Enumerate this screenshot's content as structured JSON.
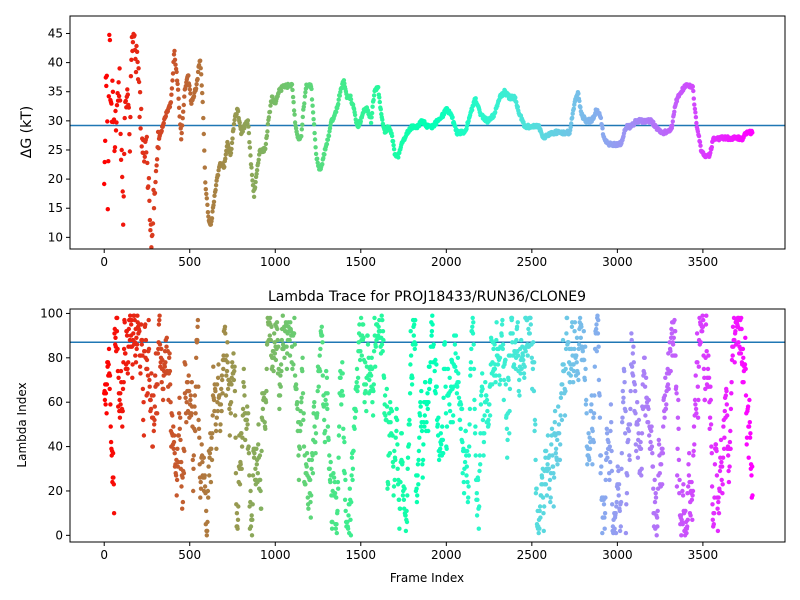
{
  "figure": {
    "background": "#ffffff"
  },
  "chart_data": [
    {
      "type": "scatter",
      "title": "",
      "xlabel": "",
      "ylabel": "ΔG (kT)",
      "xlim": [
        -200,
        3980
      ],
      "ylim": [
        8,
        48
      ],
      "xticks": [
        0,
        500,
        1000,
        1500,
        2000,
        2500,
        3000,
        3500
      ],
      "yticks": [
        10,
        15,
        20,
        25,
        30,
        35,
        40,
        45
      ],
      "hline": 29.2,
      "hline_color": "#1f77b4",
      "colormap": "rainbow_r",
      "frames": 3790,
      "grid": false,
      "legend": "none",
      "trace_anchors": [
        [
          0,
          20
        ],
        [
          8,
          33
        ],
        [
          15,
          40
        ],
        [
          22,
          14
        ],
        [
          30,
          46
        ],
        [
          40,
          30
        ],
        [
          50,
          36
        ],
        [
          60,
          26
        ],
        [
          75,
          35
        ],
        [
          90,
          38
        ],
        [
          110,
          13
        ],
        [
          120,
          31
        ],
        [
          130,
          36
        ],
        [
          150,
          27
        ],
        [
          160,
          43
        ],
        [
          175,
          45
        ],
        [
          190,
          40
        ],
        [
          210,
          33
        ],
        [
          225,
          24
        ],
        [
          240,
          27
        ],
        [
          260,
          20
        ],
        [
          275,
          9
        ],
        [
          290,
          18
        ],
        [
          310,
          25
        ],
        [
          330,
          28
        ],
        [
          360,
          31
        ],
        [
          390,
          33
        ],
        [
          410,
          42
        ],
        [
          430,
          36
        ],
        [
          450,
          27
        ],
        [
          470,
          35
        ],
        [
          490,
          38
        ],
        [
          510,
          33
        ],
        [
          540,
          36
        ],
        [
          560,
          41
        ],
        [
          575,
          34
        ],
        [
          590,
          20
        ],
        [
          610,
          13
        ],
        [
          625,
          12
        ],
        [
          640,
          16
        ],
        [
          660,
          20
        ],
        [
          680,
          23
        ],
        [
          700,
          22
        ],
        [
          720,
          26
        ],
        [
          740,
          24
        ],
        [
          760,
          30
        ],
        [
          780,
          32
        ],
        [
          800,
          28
        ],
        [
          820,
          29
        ],
        [
          840,
          30
        ],
        [
          860,
          22
        ],
        [
          875,
          17
        ],
        [
          890,
          21
        ],
        [
          910,
          25
        ],
        [
          940,
          25
        ],
        [
          960,
          30
        ],
        [
          980,
          34
        ],
        [
          1000,
          33
        ],
        [
          1020,
          35
        ],
        [
          1050,
          36
        ],
        [
          1080,
          36
        ],
        [
          1100,
          36
        ],
        [
          1115,
          30
        ],
        [
          1130,
          27
        ],
        [
          1150,
          27
        ],
        [
          1165,
          32
        ],
        [
          1180,
          36
        ],
        [
          1210,
          36
        ],
        [
          1225,
          30
        ],
        [
          1240,
          24
        ],
        [
          1255,
          22
        ],
        [
          1270,
          22
        ],
        [
          1290,
          25
        ],
        [
          1310,
          27
        ],
        [
          1330,
          30
        ],
        [
          1360,
          32
        ],
        [
          1380,
          35
        ],
        [
          1400,
          37
        ],
        [
          1420,
          34
        ],
        [
          1440,
          34
        ],
        [
          1460,
          32
        ],
        [
          1480,
          29
        ],
        [
          1500,
          30
        ],
        [
          1520,
          32
        ],
        [
          1540,
          32
        ],
        [
          1560,
          30
        ],
        [
          1580,
          35
        ],
        [
          1600,
          36
        ],
        [
          1620,
          31
        ],
        [
          1640,
          28
        ],
        [
          1660,
          29
        ],
        [
          1680,
          28
        ],
        [
          1700,
          24
        ],
        [
          1720,
          24
        ],
        [
          1740,
          26
        ],
        [
          1770,
          28
        ],
        [
          1800,
          29
        ],
        [
          1830,
          29
        ],
        [
          1860,
          30
        ],
        [
          1890,
          29
        ],
        [
          1920,
          29
        ],
        [
          1950,
          30
        ],
        [
          1980,
          31
        ],
        [
          2000,
          32
        ],
        [
          2030,
          31
        ],
        [
          2060,
          28
        ],
        [
          2090,
          28
        ],
        [
          2110,
          28
        ],
        [
          2140,
          31
        ],
        [
          2170,
          34
        ],
        [
          2200,
          31
        ],
        [
          2240,
          30
        ],
        [
          2280,
          31
        ],
        [
          2310,
          34
        ],
        [
          2340,
          35
        ],
        [
          2370,
          34
        ],
        [
          2400,
          34
        ],
        [
          2430,
          31
        ],
        [
          2460,
          29
        ],
        [
          2500,
          29
        ],
        [
          2540,
          29
        ],
        [
          2570,
          27
        ],
        [
          2610,
          28
        ],
        [
          2640,
          28
        ],
        [
          2680,
          28
        ],
        [
          2720,
          28
        ],
        [
          2750,
          33
        ],
        [
          2770,
          35
        ],
        [
          2790,
          31
        ],
        [
          2820,
          30
        ],
        [
          2850,
          30
        ],
        [
          2880,
          32
        ],
        [
          2900,
          31
        ],
        [
          2920,
          27
        ],
        [
          2950,
          26
        ],
        [
          2990,
          26
        ],
        [
          3020,
          26
        ],
        [
          3050,
          29
        ],
        [
          3080,
          29
        ],
        [
          3110,
          30
        ],
        [
          3140,
          30
        ],
        [
          3170,
          30
        ],
        [
          3200,
          30
        ],
        [
          3220,
          29
        ],
        [
          3250,
          28
        ],
        [
          3290,
          28
        ],
        [
          3320,
          29
        ],
        [
          3340,
          33
        ],
        [
          3370,
          35
        ],
        [
          3400,
          36
        ],
        [
          3420,
          36
        ],
        [
          3440,
          36
        ],
        [
          3460,
          30
        ],
        [
          3490,
          25
        ],
        [
          3510,
          24
        ],
        [
          3540,
          24
        ],
        [
          3560,
          27
        ],
        [
          3600,
          27
        ],
        [
          3650,
          27
        ],
        [
          3700,
          27
        ],
        [
          3730,
          27
        ],
        [
          3760,
          28
        ],
        [
          3790,
          28
        ]
      ]
    },
    {
      "type": "scatter",
      "title": "Lambda Trace for PROJ18433/RUN36/CLONE9",
      "xlabel": "Frame Index",
      "ylabel": "Lambda Index",
      "xlim": [
        -200,
        3980
      ],
      "ylim": [
        -3,
        102
      ],
      "xticks": [
        0,
        500,
        1000,
        1500,
        2000,
        2500,
        3000,
        3500
      ],
      "yticks": [
        0,
        20,
        40,
        60,
        80,
        100
      ],
      "hline": 87,
      "hline_color": "#1f77b4",
      "colormap": "rainbow_r",
      "frames": 3790,
      "lambda_max": 99,
      "grid": false,
      "legend": "none"
    }
  ]
}
